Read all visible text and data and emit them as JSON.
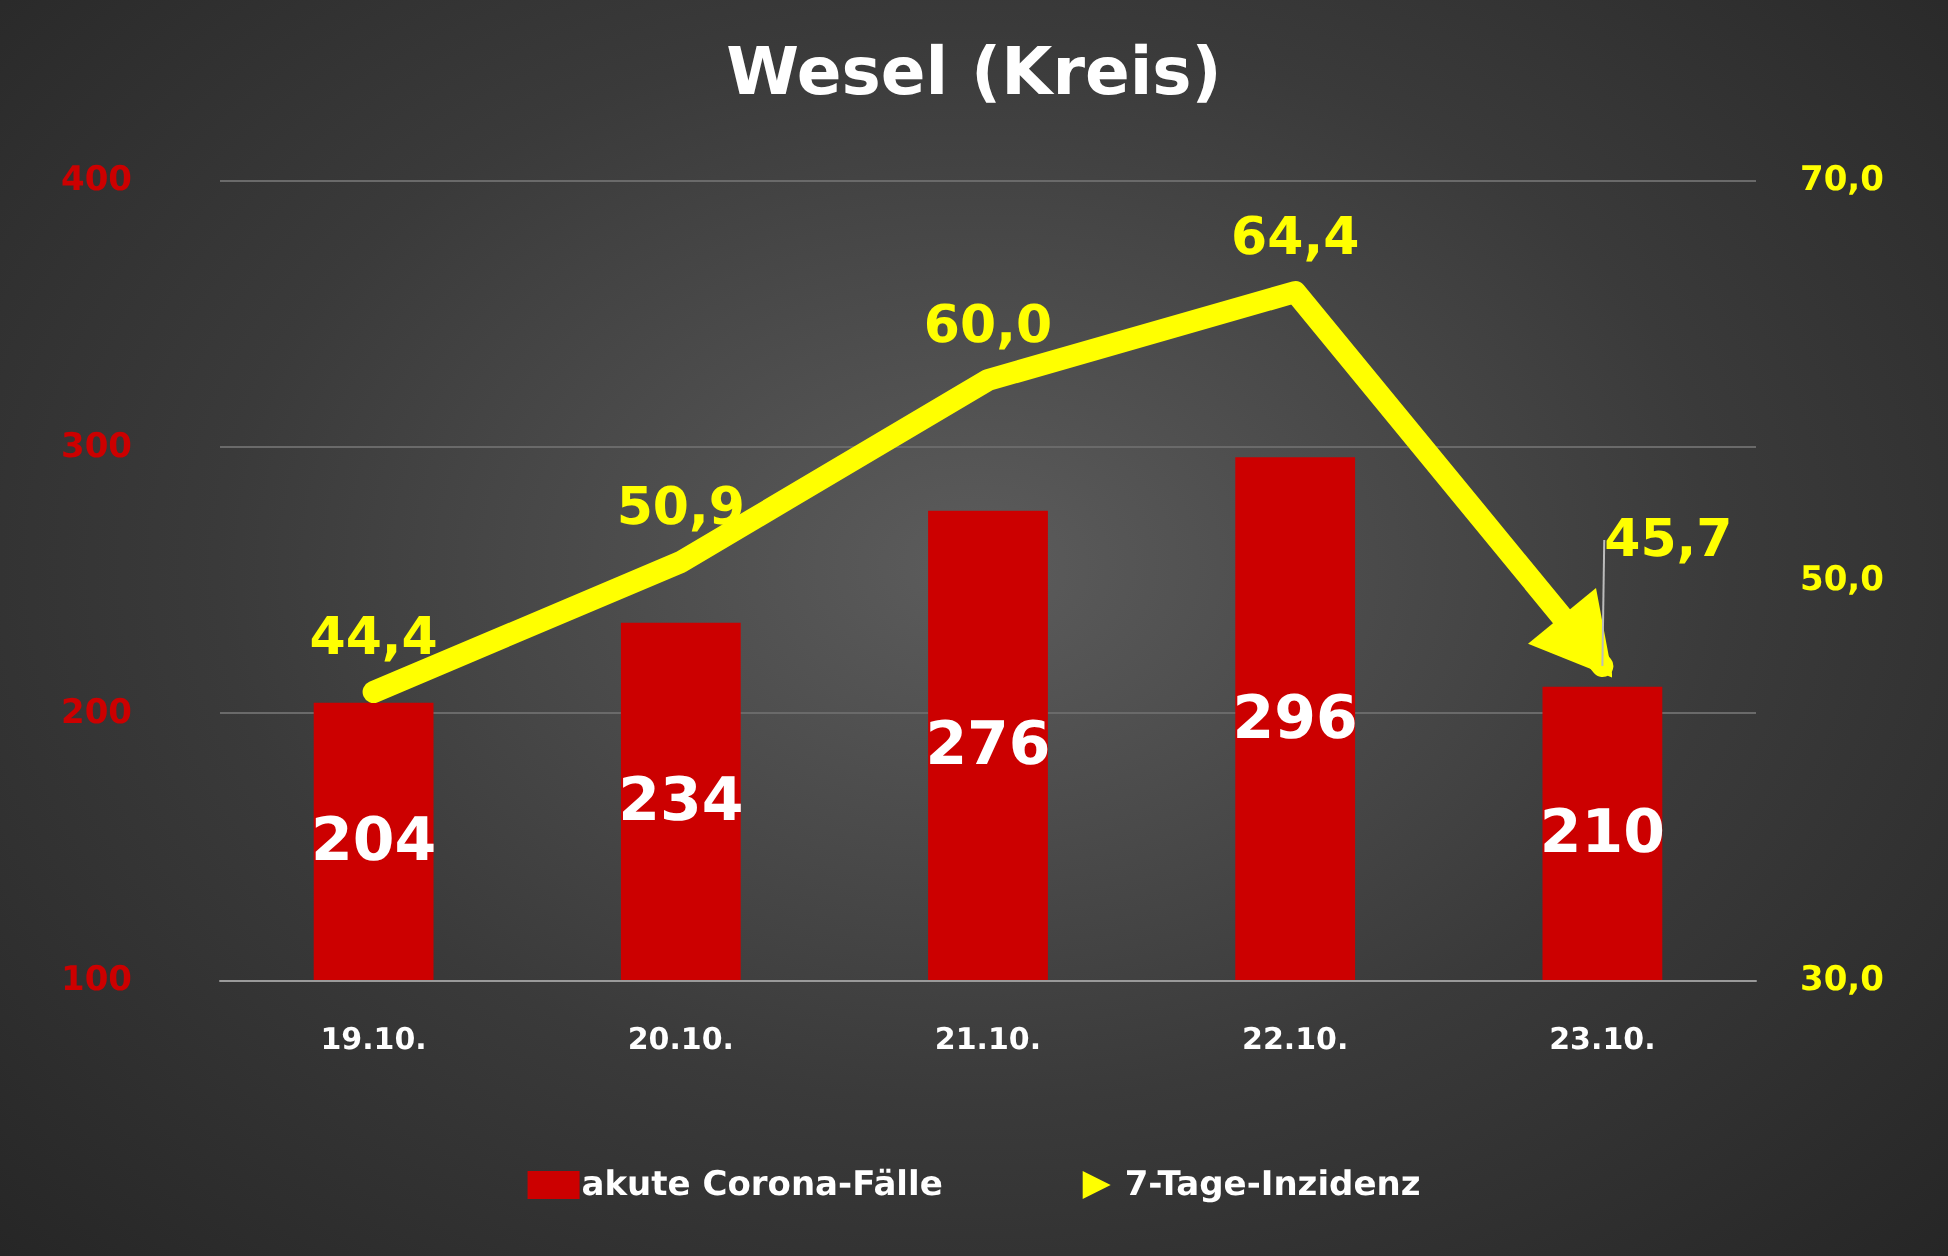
{
  "chart_data": {
    "type": "bar",
    "title": "Wesel (Kreis)",
    "categories": [
      "19.10.",
      "20.10.",
      "21.10.",
      "22.10.",
      "23.10."
    ],
    "series": [
      {
        "name": "akute Corona-Fälle",
        "color": "#cc0000",
        "values": [
          204,
          234,
          276,
          296,
          210
        ],
        "value_labels": [
          "204",
          "234",
          "276",
          "296",
          "210"
        ]
      },
      {
        "name": "7-Tage-Inzidenz",
        "type": "line",
        "axis": "y2",
        "color": "#ffff00",
        "values": [
          44.4,
          50.9,
          60.0,
          64.4,
          45.7
        ],
        "value_labels": [
          "44,4",
          "50,9",
          "60,0",
          "64,4",
          "45,7"
        ]
      }
    ],
    "ylim": [
      100,
      400
    ],
    "yticks": [
      100,
      200,
      300,
      400
    ],
    "y2lim": [
      30,
      70
    ],
    "y2ticks": [
      {
        "value": 30,
        "label": "30,0"
      },
      {
        "value": 50,
        "label": "50,0"
      },
      {
        "value": 70,
        "label": "70,0"
      }
    ],
    "grid": "y",
    "legend": "bottom"
  }
}
